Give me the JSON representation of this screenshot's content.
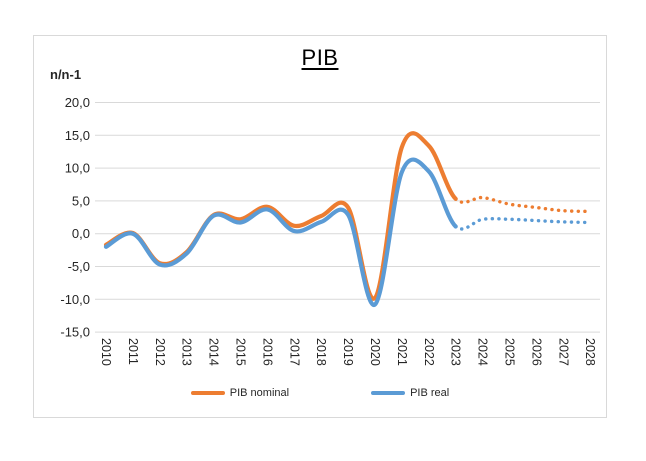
{
  "chart": {
    "title": "PIB",
    "y_unit_label": "n/n-1",
    "legend": {
      "items": [
        {
          "label": "PIB nominal"
        },
        {
          "label": "PIB real"
        }
      ]
    },
    "colors": {
      "nominal": "#ED7D31",
      "real": "#5B9BD5",
      "gridline": "#D9D9D9",
      "frame_border": "#D9D9D9",
      "axis_text": "#262626"
    }
  },
  "chart_data": {
    "type": "line",
    "title": "PIB",
    "xlabel": "",
    "ylabel": "n/n-1",
    "categories": [
      "2010",
      "2011",
      "2012",
      "2013",
      "2014",
      "2015",
      "2016",
      "2017",
      "2018",
      "2019",
      "2020",
      "2021",
      "2022",
      "2023",
      "2024",
      "2025",
      "2026",
      "2027",
      "2028"
    ],
    "series": [
      {
        "name": "PIB nominal",
        "color": "#ED7D31",
        "values": [
          -1.7,
          0.1,
          -4.5,
          -2.8,
          2.85,
          2.2,
          4.1,
          1.2,
          2.7,
          4.0,
          -9.8,
          13.2,
          13.4,
          5.3,
          5.5,
          4.5,
          4.0,
          3.5,
          3.4
        ]
      },
      {
        "name": "PIB real",
        "color": "#5B9BD5",
        "values": [
          -2.0,
          0.0,
          -4.7,
          -3.0,
          2.75,
          1.7,
          3.7,
          0.4,
          1.8,
          2.9,
          -10.8,
          9.4,
          9.5,
          1.1,
          2.2,
          2.2,
          2.0,
          1.8,
          1.7
        ]
      }
    ],
    "ylim": [
      -15,
      20
    ],
    "y_tick_step": 5,
    "y_tick_labels": [
      "20,0",
      "15,0",
      "10,0",
      "5,0",
      "0,0",
      "-5,0",
      "-10,0",
      "-15,0"
    ],
    "grid": true,
    "smoothed": true,
    "legend_position": "bottom",
    "forecast_start_year": "2023",
    "line_style": {
      "historical": "solid",
      "forecast": "dotted"
    }
  }
}
